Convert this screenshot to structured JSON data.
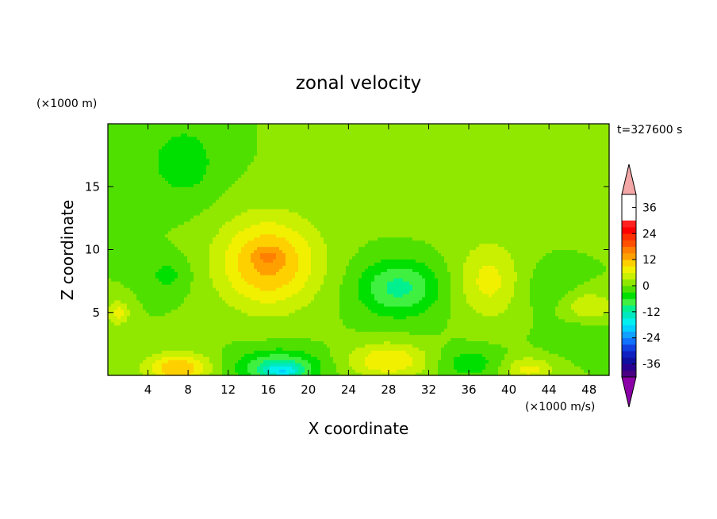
{
  "chart_data": {
    "type": "heatmap",
    "title": "zonal velocity",
    "xlabel": "X coordinate",
    "ylabel": "Z coordinate",
    "x_unit": "(×1000 m/s)",
    "y_unit": "(×1000 m)",
    "time_label": "t=327600 s",
    "xlim": [
      0,
      50
    ],
    "ylim": [
      0,
      20
    ],
    "x_ticks": [
      4,
      8,
      12,
      16,
      20,
      24,
      28,
      32,
      36,
      40,
      44,
      48
    ],
    "y_ticks": [
      5,
      10,
      15
    ],
    "colorbar": {
      "levels": [
        -42,
        -39,
        -36,
        -33,
        -30,
        -27,
        -24,
        -21,
        -18,
        -15,
        -12,
        -9,
        -6,
        -3,
        0,
        3,
        6,
        9,
        12,
        15,
        18,
        21,
        24,
        27,
        30,
        33,
        36,
        39,
        42
      ],
      "tick_labels": [
        "36",
        "24",
        "12",
        "0",
        "-12",
        "-24",
        "-36"
      ],
      "tick_values": [
        36,
        24,
        12,
        0,
        -12,
        -24,
        -36
      ],
      "colors": [
        "#4a0080",
        "#2a0090",
        "#1010a0",
        "#1020c0",
        "#1040e0",
        "#1070ff",
        "#10a0ff",
        "#00d0ff",
        "#00f0f0",
        "#00e8c0",
        "#00f090",
        "#40f040",
        "#00e000",
        "#50e000",
        "#90e800",
        "#c8f000",
        "#f0f000",
        "#ffd000",
        "#ffa000",
        "#ff8000",
        "#ff5000",
        "#ff3000",
        "#ff0000",
        "#ff2020"
      ],
      "over_color": "#f4a7a7",
      "under_color": "#8c00a8"
    },
    "field": {
      "background": 0,
      "blobs": [
        {
          "x": 16,
          "z": 9,
          "sx": 5,
          "sz": 3.6,
          "amp": 13
        },
        {
          "x": 16,
          "z": 9.5,
          "sx": 1.2,
          "sz": 0.6,
          "amp": 4
        },
        {
          "x": 7,
          "z": 0.6,
          "sx": 3.2,
          "sz": 1.2,
          "amp": 12
        },
        {
          "x": 28,
          "z": 1.2,
          "sx": 4,
          "sz": 1.4,
          "amp": 9
        },
        {
          "x": 38,
          "z": 7.5,
          "sx": 3.2,
          "sz": 3,
          "amp": 7
        },
        {
          "x": 42,
          "z": 0.5,
          "sx": 2.5,
          "sz": 1,
          "amp": 7
        },
        {
          "x": 48,
          "z": 5.5,
          "sx": 2.5,
          "sz": 1.2,
          "amp": 6
        },
        {
          "x": 1,
          "z": 5,
          "sx": 1.2,
          "sz": 1,
          "amp": 7
        },
        {
          "x": 36,
          "z": 17,
          "sx": 10,
          "sz": 5,
          "amp": 2.5
        },
        {
          "x": 29,
          "z": 7,
          "sx": 4,
          "sz": 2.2,
          "amp": -10
        },
        {
          "x": 17,
          "z": 0.6,
          "sx": 4,
          "sz": 1.4,
          "amp": -11
        },
        {
          "x": 17.5,
          "z": 0.4,
          "sx": 1.8,
          "sz": 0.6,
          "amp": -8
        },
        {
          "x": 7.5,
          "z": 17,
          "sx": 3.5,
          "sz": 3,
          "amp": -5
        },
        {
          "x": 6,
          "z": 8,
          "sx": 2.2,
          "sz": 1.5,
          "amp": -4
        },
        {
          "x": 36,
          "z": 1,
          "sx": 3,
          "sz": 1.2,
          "amp": -5
        },
        {
          "x": 47,
          "z": 3,
          "sx": 3,
          "sz": 1.3,
          "amp": -3
        },
        {
          "x": 44,
          "z": 7,
          "sx": 3,
          "sz": 2,
          "amp": -2
        }
      ]
    }
  }
}
